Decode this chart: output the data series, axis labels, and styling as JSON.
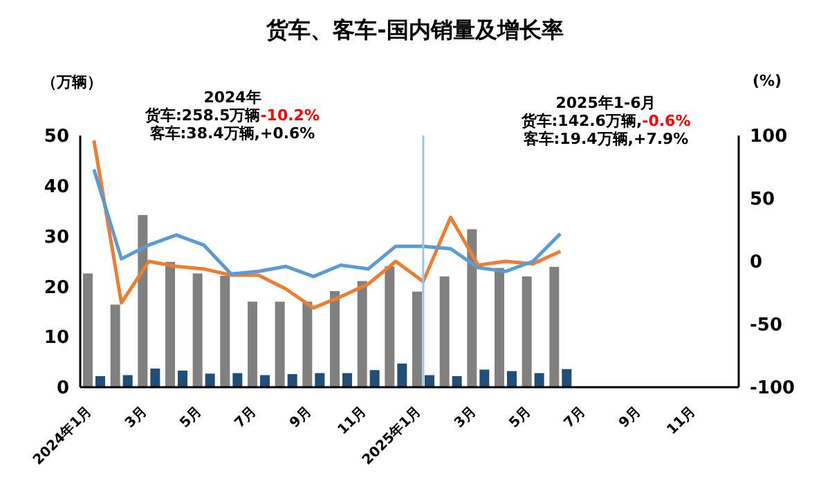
{
  "chart_data": {
    "type": "bar",
    "title": "货车、客车-国内销量及增长率",
    "ylabel": "（万辆）",
    "y2label": "(%)",
    "categories": [
      "2024年1月",
      null,
      "3月",
      null,
      "5月",
      null,
      "7月",
      null,
      "9月",
      null,
      "11月",
      null,
      "2025年1月",
      null,
      "3月",
      null,
      "5月",
      null,
      "7月",
      null,
      "9月",
      null,
      "11月",
      null
    ],
    "series": [
      {
        "color": "#808080",
        "values": [
          22.6,
          16.4,
          34.2,
          24.9,
          22.6,
          22.1,
          17.0,
          17.0,
          17.0,
          19.1,
          21.1,
          24.0,
          19.0,
          22.0,
          31.4,
          23.7,
          22.0,
          23.9,
          null,
          null,
          null,
          null,
          null,
          null
        ]
      },
      {
        "color": "#1f4e79",
        "values": [
          2.2,
          2.4,
          3.7,
          3.3,
          2.7,
          2.8,
          2.4,
          2.6,
          2.8,
          2.8,
          3.4,
          4.7,
          2.4,
          2.2,
          3.5,
          3.2,
          2.8,
          3.6,
          null,
          null,
          null,
          null,
          null,
          null
        ]
      },
      {
        "type": "line",
        "axis": "y2",
        "color": "#ed7d31",
        "values": [
          96,
          -33,
          0,
          -4,
          -6,
          -11,
          -11,
          -22,
          -37,
          -28,
          -18,
          0,
          -16,
          35,
          -3,
          0,
          -2,
          8,
          null,
          null,
          null,
          null,
          null,
          null
        ]
      },
      {
        "type": "line",
        "axis": "y2",
        "color": "#5b9bd5",
        "values": [
          73,
          2,
          13,
          21,
          13,
          -10,
          -8,
          -4,
          -12,
          -3,
          -6,
          12,
          12,
          10,
          -5,
          -8,
          0,
          22,
          null,
          null,
          null,
          null,
          null,
          null
        ]
      }
    ],
    "ylim": [
      0,
      50
    ],
    "yticks": [
      0,
      10,
      20,
      30,
      40,
      50
    ],
    "y2lim": [
      -100,
      100
    ],
    "y2ticks": [
      -100,
      -50,
      0,
      50,
      100
    ],
    "ref_lines": [
      {
        "axis": "x",
        "value": "2025年1月",
        "color": "#9dc3e6"
      }
    ],
    "annotations": [
      "2024年",
      "货车:258.5万辆-10.2%",
      "客车:38.4万辆,+0.6%",
      "2025年1-6月",
      "货车:142.6万辆,-0.6%",
      "客车:19.4万辆,+7.9%"
    ],
    "grid": false,
    "legend": false
  }
}
